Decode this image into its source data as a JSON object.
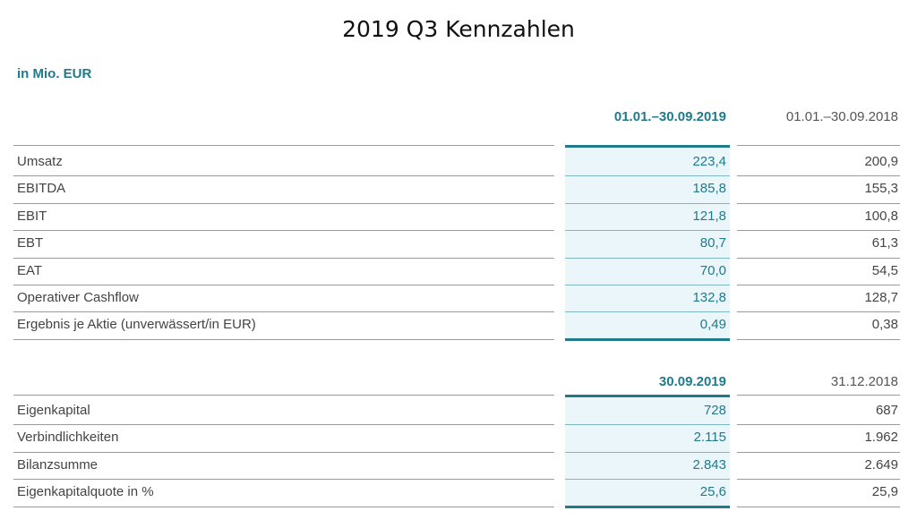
{
  "title": "2019 Q3 Kennzahlen",
  "unit": "in Mio. EUR",
  "section1": {
    "col_current": "01.01.–30.09.2019",
    "col_previous": "01.01.–30.09.2018",
    "rows": [
      {
        "label": "Umsatz",
        "current": "223,4",
        "previous": "200,9"
      },
      {
        "label": "EBITDA",
        "current": "185,8",
        "previous": "155,3"
      },
      {
        "label": "EBIT",
        "current": "121,8",
        "previous": "100,8"
      },
      {
        "label": "EBT",
        "current": "80,7",
        "previous": "61,3"
      },
      {
        "label": "EAT",
        "current": "70,0",
        "previous": "54,5"
      },
      {
        "label": "Operativer Cashflow",
        "current": "132,8",
        "previous": "128,7"
      },
      {
        "label": "Ergebnis je Aktie (unverwässert/in EUR)",
        "current": "0,49",
        "previous": "0,38"
      }
    ]
  },
  "section2": {
    "col_current": "30.09.2019",
    "col_previous": "31.12.2018",
    "rows": [
      {
        "label": "Eigenkapital",
        "current": "728",
        "previous": "687"
      },
      {
        "label": "Verbindlichkeiten",
        "current": "2.115",
        "previous": "1.962"
      },
      {
        "label": "Bilanzsumme",
        "current": "2.843",
        "previous": "2.649"
      },
      {
        "label": "Eigenkapitalquote in %",
        "current": "25,6",
        "previous": "25,9"
      }
    ]
  },
  "colors": {
    "accent": "#1f7a8c",
    "highlight_bg": "#eaf6fa"
  }
}
